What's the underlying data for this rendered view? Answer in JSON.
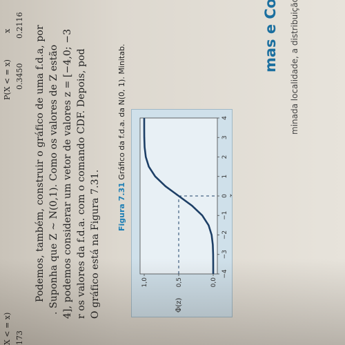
{
  "table_top": {
    "col1": [
      "P(X < = x)",
      "0.3450"
    ],
    "col2": [
      "x",
      "0.2116"
    ],
    "left_frag": [
      "X < = x)",
      "173"
    ]
  },
  "paragraph": [
    "Podemos, também, construir o gráfico de uma f.d.a, por",
    ". Suponha que Z ~ N(0,1). Como os valores de Z estão",
    "4], podemos considerar um vetor de valores z = [−4,0; −3",
    "r os valores da f.d.a. com o comando CDF. Depois, pod",
    "O gráfico está na Figura 7.31."
  ],
  "figure": {
    "label": "Figura 7.31",
    "caption": "Gráfico da f.d.a. da N(0, 1). Minitab."
  },
  "section": {
    "heading": "mas e Complementos",
    "text": "minada localidade, a distribuição de renda (em reais) é um"
  },
  "chart_data": {
    "type": "line",
    "title": "",
    "xlabel": "z",
    "ylabel": "Φ(z)",
    "xlim": [
      -4,
      4
    ],
    "ylim": [
      0,
      1
    ],
    "x_ticks": [
      "−4",
      "−3",
      "−2",
      "−1",
      "0",
      "1",
      "2",
      "3",
      "4"
    ],
    "y_ticks": [
      "0,0",
      "0,5",
      "1,0"
    ],
    "annotation": "Φ(z)",
    "guide": {
      "x": 0,
      "y": 0.5
    },
    "series": [
      {
        "x": [
          -4,
          -3.5,
          -3,
          -2.5,
          -2,
          -1.5,
          -1,
          -0.5,
          0,
          0.5,
          1,
          1.5,
          2,
          2.5,
          3,
          3.5,
          4
        ],
        "values": [
          0.0,
          0.0002,
          0.0013,
          0.0062,
          0.0228,
          0.0668,
          0.1587,
          0.3085,
          0.5,
          0.6915,
          0.8413,
          0.9332,
          0.9772,
          0.9938,
          0.9987,
          0.9998,
          1.0
        ]
      }
    ],
    "line_color": "#1d3f66"
  }
}
